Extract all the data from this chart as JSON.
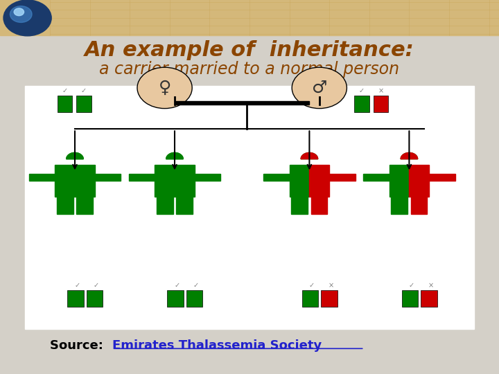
{
  "title_line1": "An example of  inheritance:",
  "title_line2": "a carrier married to a normal person",
  "source_text": "Source: ",
  "source_link": "Emirates Thalassemia Society",
  "bg_color": "#d4d0c8",
  "header_bg": "#d4b87a",
  "title_color": "#8B4500",
  "subtitle_color": "#8B4500",
  "source_color": "#000000",
  "link_color": "#2222cc",
  "diagram_bg": "#ffffff",
  "green": "#008000",
  "red": "#cc0000"
}
